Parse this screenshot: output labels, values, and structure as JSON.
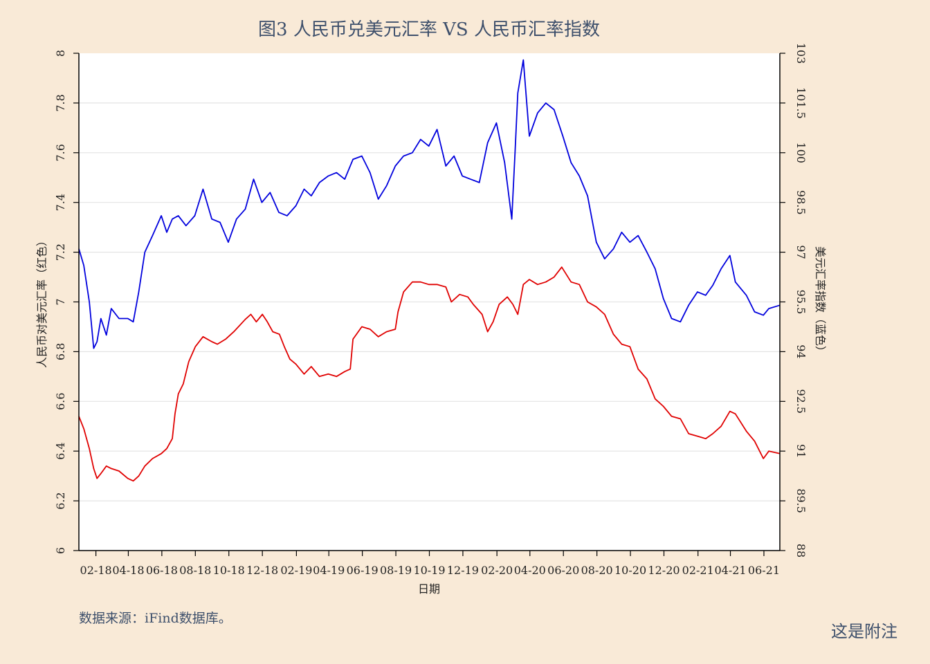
{
  "title": "图3 人民币兑美元汇率 VS 人民币汇率指数",
  "source": "数据来源：iFind数据库。",
  "note": "这是附注",
  "chart_data": {
    "type": "line",
    "title": "图3 人民币兑美元汇率 VS 人民币汇率指数",
    "xlabel": "日期",
    "ylabel_left": "人民币对美元汇率（红色）",
    "ylabel_right": "美元汇率指数（蓝色）",
    "ylim_left": [
      6,
      8
    ],
    "ylim_right": [
      88,
      103
    ],
    "yticks_left": [
      "6",
      "6.2",
      "6.4",
      "6.6",
      "6.8",
      "7",
      "7.2",
      "7.4",
      "7.6",
      "7.8",
      "8"
    ],
    "yticks_right": [
      "88",
      "89.5",
      "91",
      "92.5",
      "94",
      "95.5",
      "97",
      "98.5",
      "100",
      "101.5",
      "103"
    ],
    "xticks": [
      "02-18",
      "04-18",
      "06-18",
      "08-18",
      "10-18",
      "12-18",
      "02-19",
      "04-19",
      "06-19",
      "08-19",
      "10-19",
      "12-19",
      "02-20",
      "04-20",
      "06-20",
      "08-20",
      "10-20",
      "12-20",
      "02-21",
      "04-21",
      "06-21"
    ],
    "grid": true,
    "colors": {
      "red_series": "#e00000",
      "blue_series": "#0000dd",
      "grid": "#e4e4e4"
    },
    "series": [
      {
        "name": "人民币对美元汇率",
        "axis": "left",
        "color": "#e00000",
        "points": [
          [
            "2018-01-01",
            6.54
          ],
          [
            "2018-01-10",
            6.49
          ],
          [
            "2018-01-20",
            6.41
          ],
          [
            "2018-01-28",
            6.33
          ],
          [
            "2018-02-03",
            6.29
          ],
          [
            "2018-02-10",
            6.31
          ],
          [
            "2018-02-20",
            6.34
          ],
          [
            "2018-03-01",
            6.33
          ],
          [
            "2018-03-15",
            6.32
          ],
          [
            "2018-03-31",
            6.29
          ],
          [
            "2018-04-10",
            6.28
          ],
          [
            "2018-04-20",
            6.3
          ],
          [
            "2018-05-01",
            6.34
          ],
          [
            "2018-05-15",
            6.37
          ],
          [
            "2018-05-31",
            6.39
          ],
          [
            "2018-06-10",
            6.41
          ],
          [
            "2018-06-20",
            6.45
          ],
          [
            "2018-06-25",
            6.55
          ],
          [
            "2018-07-01",
            6.63
          ],
          [
            "2018-07-10",
            6.67
          ],
          [
            "2018-07-20",
            6.76
          ],
          [
            "2018-08-01",
            6.82
          ],
          [
            "2018-08-15",
            6.86
          ],
          [
            "2018-08-31",
            6.84
          ],
          [
            "2018-09-10",
            6.83
          ],
          [
            "2018-09-25",
            6.85
          ],
          [
            "2018-10-10",
            6.88
          ],
          [
            "2018-10-31",
            6.93
          ],
          [
            "2018-11-10",
            6.95
          ],
          [
            "2018-11-20",
            6.92
          ],
          [
            "2018-12-01",
            6.95
          ],
          [
            "2018-12-10",
            6.92
          ],
          [
            "2018-12-20",
            6.88
          ],
          [
            "2019-01-01",
            6.87
          ],
          [
            "2019-01-10",
            6.82
          ],
          [
            "2019-01-20",
            6.77
          ],
          [
            "2019-01-31",
            6.75
          ],
          [
            "2019-02-15",
            6.71
          ],
          [
            "2019-02-28",
            6.74
          ],
          [
            "2019-03-15",
            6.7
          ],
          [
            "2019-03-31",
            6.71
          ],
          [
            "2019-04-15",
            6.7
          ],
          [
            "2019-04-30",
            6.72
          ],
          [
            "2019-05-10",
            6.73
          ],
          [
            "2019-05-15",
            6.85
          ],
          [
            "2019-05-31",
            6.9
          ],
          [
            "2019-06-15",
            6.89
          ],
          [
            "2019-06-30",
            6.86
          ],
          [
            "2019-07-15",
            6.88
          ],
          [
            "2019-07-31",
            6.89
          ],
          [
            "2019-08-05",
            6.96
          ],
          [
            "2019-08-15",
            7.04
          ],
          [
            "2019-08-31",
            7.08
          ],
          [
            "2019-09-15",
            7.08
          ],
          [
            "2019-09-30",
            7.07
          ],
          [
            "2019-10-15",
            7.07
          ],
          [
            "2019-10-31",
            7.06
          ],
          [
            "2019-11-10",
            7.0
          ],
          [
            "2019-11-25",
            7.03
          ],
          [
            "2019-12-10",
            7.02
          ],
          [
            "2019-12-20",
            6.99
          ],
          [
            "2020-01-05",
            6.95
          ],
          [
            "2020-01-15",
            6.88
          ],
          [
            "2020-01-25",
            6.92
          ],
          [
            "2020-02-05",
            6.99
          ],
          [
            "2020-02-20",
            7.02
          ],
          [
            "2020-03-01",
            6.99
          ],
          [
            "2020-03-10",
            6.95
          ],
          [
            "2020-03-20",
            7.07
          ],
          [
            "2020-03-31",
            7.09
          ],
          [
            "2020-04-15",
            7.07
          ],
          [
            "2020-04-30",
            7.08
          ],
          [
            "2020-05-15",
            7.1
          ],
          [
            "2020-05-29",
            7.14
          ],
          [
            "2020-06-15",
            7.08
          ],
          [
            "2020-06-30",
            7.07
          ],
          [
            "2020-07-15",
            7.0
          ],
          [
            "2020-07-31",
            6.98
          ],
          [
            "2020-08-15",
            6.95
          ],
          [
            "2020-08-31",
            6.87
          ],
          [
            "2020-09-15",
            6.83
          ],
          [
            "2020-09-30",
            6.82
          ],
          [
            "2020-10-15",
            6.73
          ],
          [
            "2020-10-31",
            6.69
          ],
          [
            "2020-11-15",
            6.61
          ],
          [
            "2020-11-30",
            6.58
          ],
          [
            "2020-12-15",
            6.54
          ],
          [
            "2020-12-31",
            6.53
          ],
          [
            "2021-01-15",
            6.47
          ],
          [
            "2021-01-31",
            6.46
          ],
          [
            "2021-02-15",
            6.45
          ],
          [
            "2021-02-28",
            6.47
          ],
          [
            "2021-03-15",
            6.5
          ],
          [
            "2021-03-31",
            6.56
          ],
          [
            "2021-04-10",
            6.55
          ],
          [
            "2021-04-30",
            6.48
          ],
          [
            "2021-05-15",
            6.44
          ],
          [
            "2021-05-31",
            6.37
          ],
          [
            "2021-06-10",
            6.4
          ],
          [
            "2021-06-30",
            6.39
          ]
        ]
      },
      {
        "name": "美元汇率指数",
        "axis": "right",
        "color": "#0000dd",
        "points": [
          [
            "2018-01-01",
            97.1
          ],
          [
            "2018-01-10",
            96.6
          ],
          [
            "2018-01-20",
            95.5
          ],
          [
            "2018-01-28",
            94.1
          ],
          [
            "2018-02-03",
            94.3
          ],
          [
            "2018-02-10",
            95.0
          ],
          [
            "2018-02-20",
            94.5
          ],
          [
            "2018-03-01",
            95.3
          ],
          [
            "2018-03-15",
            95.0
          ],
          [
            "2018-03-31",
            95.0
          ],
          [
            "2018-04-10",
            94.9
          ],
          [
            "2018-04-20",
            95.8
          ],
          [
            "2018-05-01",
            97.0
          ],
          [
            "2018-05-15",
            97.5
          ],
          [
            "2018-05-31",
            98.1
          ],
          [
            "2018-06-10",
            97.6
          ],
          [
            "2018-06-20",
            98.0
          ],
          [
            "2018-07-01",
            98.1
          ],
          [
            "2018-07-15",
            97.8
          ],
          [
            "2018-07-31",
            98.1
          ],
          [
            "2018-08-15",
            98.9
          ],
          [
            "2018-08-31",
            98.0
          ],
          [
            "2018-09-15",
            97.9
          ],
          [
            "2018-09-30",
            97.3
          ],
          [
            "2018-10-15",
            98.0
          ],
          [
            "2018-10-31",
            98.3
          ],
          [
            "2018-11-15",
            99.2
          ],
          [
            "2018-11-30",
            98.5
          ],
          [
            "2018-12-15",
            98.8
          ],
          [
            "2018-12-31",
            98.2
          ],
          [
            "2019-01-15",
            98.1
          ],
          [
            "2019-01-31",
            98.4
          ],
          [
            "2019-02-15",
            98.9
          ],
          [
            "2019-02-28",
            98.7
          ],
          [
            "2019-03-15",
            99.1
          ],
          [
            "2019-03-31",
            99.3
          ],
          [
            "2019-04-15",
            99.4
          ],
          [
            "2019-04-30",
            99.2
          ],
          [
            "2019-05-15",
            99.8
          ],
          [
            "2019-05-31",
            99.9
          ],
          [
            "2019-06-15",
            99.4
          ],
          [
            "2019-06-30",
            98.6
          ],
          [
            "2019-07-15",
            99.0
          ],
          [
            "2019-07-31",
            99.6
          ],
          [
            "2019-08-15",
            99.9
          ],
          [
            "2019-08-31",
            100.0
          ],
          [
            "2019-09-15",
            100.4
          ],
          [
            "2019-09-30",
            100.2
          ],
          [
            "2019-10-15",
            100.7
          ],
          [
            "2019-10-31",
            99.6
          ],
          [
            "2019-11-15",
            99.9
          ],
          [
            "2019-11-30",
            99.3
          ],
          [
            "2019-12-15",
            99.2
          ],
          [
            "2019-12-31",
            99.1
          ],
          [
            "2020-01-15",
            100.3
          ],
          [
            "2020-01-31",
            100.9
          ],
          [
            "2020-02-15",
            99.7
          ],
          [
            "2020-02-28",
            98.0
          ],
          [
            "2020-03-05",
            100.0
          ],
          [
            "2020-03-10",
            101.8
          ],
          [
            "2020-03-20",
            102.8
          ],
          [
            "2020-03-31",
            100.5
          ],
          [
            "2020-04-15",
            101.2
          ],
          [
            "2020-04-30",
            101.5
          ],
          [
            "2020-05-15",
            101.3
          ],
          [
            "2020-05-31",
            100.5
          ],
          [
            "2020-06-15",
            99.7
          ],
          [
            "2020-06-30",
            99.3
          ],
          [
            "2020-07-15",
            98.7
          ],
          [
            "2020-07-31",
            97.3
          ],
          [
            "2020-08-15",
            96.8
          ],
          [
            "2020-08-31",
            97.1
          ],
          [
            "2020-09-15",
            97.6
          ],
          [
            "2020-09-30",
            97.3
          ],
          [
            "2020-10-15",
            97.5
          ],
          [
            "2020-10-31",
            97.0
          ],
          [
            "2020-11-15",
            96.5
          ],
          [
            "2020-11-30",
            95.6
          ],
          [
            "2020-12-15",
            95.0
          ],
          [
            "2020-12-31",
            94.9
          ],
          [
            "2021-01-15",
            95.4
          ],
          [
            "2021-01-31",
            95.8
          ],
          [
            "2021-02-15",
            95.7
          ],
          [
            "2021-02-28",
            96.0
          ],
          [
            "2021-03-15",
            96.5
          ],
          [
            "2021-03-31",
            96.9
          ],
          [
            "2021-04-10",
            96.1
          ],
          [
            "2021-04-30",
            95.7
          ],
          [
            "2021-05-15",
            95.2
          ],
          [
            "2021-05-31",
            95.1
          ],
          [
            "2021-06-10",
            95.3
          ],
          [
            "2021-06-30",
            95.4
          ]
        ]
      }
    ]
  }
}
